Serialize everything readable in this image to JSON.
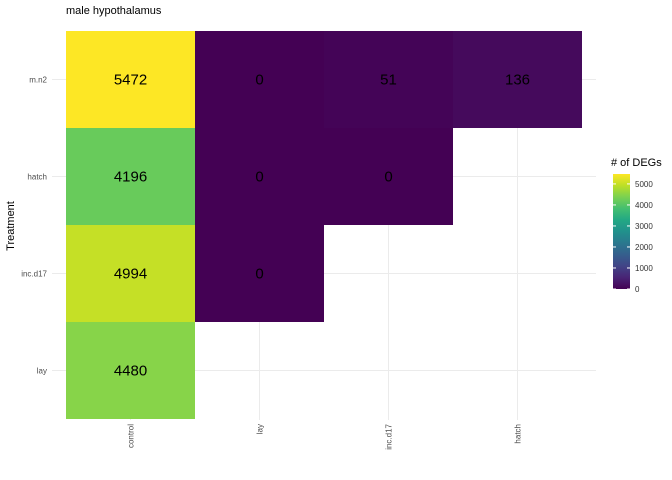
{
  "chart_data": {
    "type": "heatmap",
    "title": "male hypothalamus",
    "xlabel": "",
    "ylabel": "Treatment",
    "x_categories": [
      "control",
      "lay",
      "inc.d17",
      "hatch"
    ],
    "y_categories": [
      "m.n2",
      "hatch",
      "inc.d17",
      "lay"
    ],
    "cells": [
      {
        "x": "control",
        "y": "m.n2",
        "value": 5472
      },
      {
        "x": "lay",
        "y": "m.n2",
        "value": 0
      },
      {
        "x": "inc.d17",
        "y": "m.n2",
        "value": 51
      },
      {
        "x": "hatch",
        "y": "m.n2",
        "value": 136
      },
      {
        "x": "control",
        "y": "hatch",
        "value": 4196
      },
      {
        "x": "lay",
        "y": "hatch",
        "value": 0
      },
      {
        "x": "inc.d17",
        "y": "hatch",
        "value": 0
      },
      {
        "x": "control",
        "y": "inc.d17",
        "value": 4994
      },
      {
        "x": "lay",
        "y": "inc.d17",
        "value": 0
      },
      {
        "x": "control",
        "y": "lay",
        "value": 4480
      }
    ],
    "legend": {
      "title": "# of DEGs",
      "ticks": [
        0,
        1000,
        2000,
        3000,
        4000,
        5000
      ],
      "range": [
        0,
        5472
      ],
      "colormap": "viridis",
      "position": "right"
    },
    "grid": true
  }
}
